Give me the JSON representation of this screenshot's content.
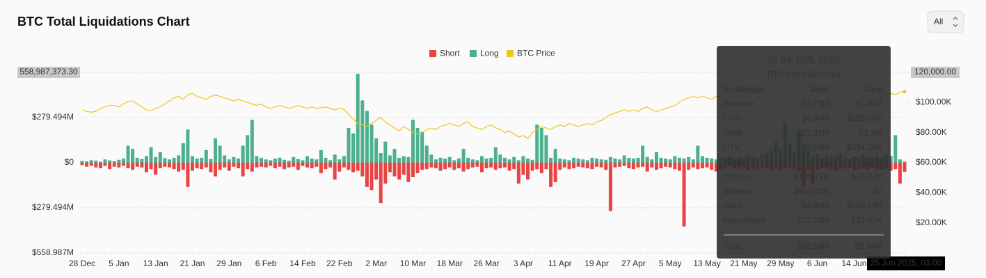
{
  "chart_data": {
    "type": "bar",
    "title": "BTC Total Liquidations Chart",
    "range_selector": "All",
    "categories": [
      "28 Dec",
      null,
      null,
      null,
      null,
      null,
      null,
      null,
      "5 Jan",
      null,
      null,
      null,
      null,
      null,
      null,
      null,
      "13 Jan",
      null,
      null,
      null,
      null,
      null,
      null,
      null,
      "21 Jan",
      null,
      null,
      null,
      null,
      null,
      null,
      null,
      "29 Jan",
      null,
      null,
      null,
      null,
      null,
      null,
      null,
      "6 Feb",
      null,
      null,
      null,
      null,
      null,
      null,
      null,
      "14 Feb",
      null,
      null,
      null,
      null,
      null,
      null,
      null,
      "22 Feb",
      null,
      null,
      null,
      null,
      null,
      null,
      null,
      "2 Mar",
      null,
      null,
      null,
      null,
      null,
      null,
      null,
      "10 Mar",
      null,
      null,
      null,
      null,
      null,
      null,
      null,
      "18 Mar",
      null,
      null,
      null,
      null,
      null,
      null,
      null,
      "26 Mar",
      null,
      null,
      null,
      null,
      null,
      null,
      null,
      "3 Apr",
      null,
      null,
      null,
      null,
      null,
      null,
      null,
      "11 Apr",
      null,
      null,
      null,
      null,
      null,
      null,
      null,
      "19 Apr",
      null,
      null,
      null,
      null,
      null,
      null,
      null,
      "27 Apr",
      null,
      null,
      null,
      null,
      null,
      null,
      null,
      "5 May",
      null,
      null,
      null,
      null,
      null,
      null,
      null,
      "13 May",
      null,
      null,
      null,
      null,
      null,
      null,
      null,
      "21 May",
      null,
      null,
      null,
      null,
      null,
      null,
      null,
      "29 May",
      null,
      null,
      null,
      null,
      null,
      null,
      null,
      "6 Jun",
      null,
      null,
      null,
      null,
      null,
      null,
      null,
      "14 Jun",
      null,
      null,
      null,
      null,
      null,
      null,
      null,
      null,
      null,
      null,
      "25 Jun 2025, 03:00"
    ],
    "series": [
      {
        "name": "Short",
        "color": "#ea4344",
        "values": [
          -15000000,
          -25000000,
          -20000000,
          -30000000,
          -35000000,
          -20000000,
          -40000000,
          -25000000,
          -30000000,
          -20000000,
          -35000000,
          -45000000,
          -25000000,
          -30000000,
          -60000000,
          -40000000,
          -75000000,
          -35000000,
          -25000000,
          -30000000,
          -40000000,
          -55000000,
          -45000000,
          -150000000,
          -50000000,
          -35000000,
          -40000000,
          -30000000,
          -60000000,
          -85000000,
          -45000000,
          -30000000,
          -50000000,
          -25000000,
          -35000000,
          -85000000,
          -40000000,
          -55000000,
          -30000000,
          -25000000,
          -30000000,
          -20000000,
          -35000000,
          -25000000,
          -40000000,
          -30000000,
          -25000000,
          -45000000,
          -20000000,
          -30000000,
          -35000000,
          -25000000,
          -65000000,
          -40000000,
          -30000000,
          -105000000,
          -55000000,
          -30000000,
          -45000000,
          -60000000,
          -50000000,
          -85000000,
          -150000000,
          -170000000,
          -105000000,
          -250000000,
          -130000000,
          -60000000,
          -85000000,
          -105000000,
          -75000000,
          -120000000,
          -90000000,
          -65000000,
          -45000000,
          -40000000,
          -30000000,
          -35000000,
          -50000000,
          -40000000,
          -30000000,
          -45000000,
          -35000000,
          -55000000,
          -40000000,
          -30000000,
          -25000000,
          -60000000,
          -35000000,
          -30000000,
          -45000000,
          -35000000,
          -30000000,
          -50000000,
          -40000000,
          -130000000,
          -75000000,
          -105000000,
          -50000000,
          -40000000,
          -65000000,
          -40000000,
          -150000000,
          -120000000,
          -45000000,
          -30000000,
          -40000000,
          -35000000,
          -25000000,
          -30000000,
          -35000000,
          -40000000,
          -25000000,
          -30000000,
          -45000000,
          -300000000,
          -30000000,
          -25000000,
          -20000000,
          -35000000,
          -40000000,
          -30000000,
          -25000000,
          -55000000,
          -30000000,
          -45000000,
          -35000000,
          -25000000,
          -30000000,
          -40000000,
          -50000000,
          -395000000,
          -45000000,
          -30000000,
          -40000000,
          -35000000,
          -30000000,
          -45000000,
          -55000000,
          -40000000,
          -30000000,
          -25000000,
          -35000000,
          -40000000,
          -30000000,
          -45000000,
          -35000000,
          -40000000,
          -30000000,
          -35000000,
          -40000000,
          -30000000,
          -45000000,
          -35000000,
          -30000000,
          -40000000,
          -50000000,
          -150000000,
          -45000000,
          -130000000,
          -40000000,
          -35000000,
          -30000000,
          -45000000,
          -50000000,
          -40000000,
          -35000000,
          -30000000,
          -45000000,
          -40000000,
          -35000000,
          -40000000,
          -30000000,
          -45000000,
          -40000000,
          -35000000,
          -50000000,
          -40000000,
          -130000000,
          -56590000
        ]
      },
      {
        "name": "Long",
        "color": "#4caf8e",
        "values": [
          10000000,
          8000000,
          15000000,
          12000000,
          6000000,
          20000000,
          14000000,
          9000000,
          18000000,
          25000000,
          105000000,
          85000000,
          30000000,
          22000000,
          40000000,
          95000000,
          35000000,
          65000000,
          28000000,
          20000000,
          30000000,
          45000000,
          120000000,
          205000000,
          40000000,
          25000000,
          30000000,
          78000000,
          22000000,
          150000000,
          105000000,
          45000000,
          20000000,
          35000000,
          25000000,
          105000000,
          170000000,
          265000000,
          40000000,
          30000000,
          20000000,
          15000000,
          25000000,
          30000000,
          18000000,
          12000000,
          35000000,
          22000000,
          15000000,
          40000000,
          25000000,
          20000000,
          78000000,
          30000000,
          15000000,
          50000000,
          20000000,
          40000000,
          215000000,
          180000000,
          550000000,
          385000000,
          320000000,
          235000000,
          150000000,
          60000000,
          130000000,
          45000000,
          85000000,
          30000000,
          40000000,
          35000000,
          265000000,
          215000000,
          190000000,
          105000000,
          50000000,
          20000000,
          30000000,
          25000000,
          35000000,
          15000000,
          25000000,
          85000000,
          30000000,
          20000000,
          15000000,
          40000000,
          25000000,
          30000000,
          95000000,
          50000000,
          30000000,
          20000000,
          35000000,
          15000000,
          40000000,
          25000000,
          18000000,
          235000000,
          215000000,
          170000000,
          30000000,
          85000000,
          25000000,
          20000000,
          15000000,
          30000000,
          25000000,
          20000000,
          15000000,
          30000000,
          25000000,
          20000000,
          18000000,
          35000000,
          25000000,
          20000000,
          45000000,
          30000000,
          25000000,
          30000000,
          105000000,
          35000000,
          20000000,
          65000000,
          30000000,
          25000000,
          20000000,
          40000000,
          30000000,
          25000000,
          35000000,
          20000000,
          105000000,
          40000000,
          30000000,
          25000000,
          20000000,
          35000000,
          30000000,
          40000000,
          25000000,
          35000000,
          30000000,
          45000000,
          40000000,
          30000000,
          50000000,
          60000000,
          75000000,
          130000000,
          90000000,
          255000000,
          120000000,
          60000000,
          190000000,
          80000000,
          70000000,
          40000000,
          55000000,
          30000000,
          45000000,
          35000000,
          40000000,
          60000000,
          30000000,
          25000000,
          40000000,
          30000000,
          45000000,
          35000000,
          30000000,
          40000000,
          25000000,
          50000000,
          40000000,
          170000000,
          20000000,
          6340000
        ]
      },
      {
        "name": "BTC Price",
        "color": "#f0c419",
        "axis": "y2",
        "values": [
          95000,
          94000,
          93500,
          94000,
          96000,
          97000,
          98000,
          98000,
          97000,
          99000,
          100500,
          101000,
          99000,
          97000,
          95000,
          94500,
          96000,
          97000,
          99000,
          101000,
          103000,
          104000,
          102000,
          105000,
          106000,
          104000,
          103000,
          102000,
          104000,
          105000,
          104000,
          103000,
          102000,
          101000,
          102000,
          101000,
          100000,
          99000,
          98000,
          99000,
          97000,
          96000,
          97000,
          98000,
          97000,
          96000,
          97000,
          98000,
          97000,
          96000,
          97000,
          96000,
          96500,
          97000,
          96000,
          95000,
          96000,
          95500,
          92000,
          89000,
          86000,
          85000,
          84000,
          86000,
          88000,
          90000,
          87000,
          85000,
          83000,
          81000,
          84000,
          82000,
          80000,
          79000,
          80000,
          82000,
          83000,
          82000,
          84000,
          85000,
          86000,
          85000,
          84000,
          86000,
          87000,
          84000,
          83000,
          82000,
          84000,
          85000,
          83000,
          82000,
          80000,
          81000,
          79000,
          77000,
          78000,
          76000,
          80000,
          82000,
          84000,
          83000,
          82000,
          84000,
          85000,
          84000,
          86000,
          85000,
          84000,
          85000,
          86000,
          85000,
          87000,
          88000,
          90000,
          92000,
          93000,
          94000,
          95000,
          94000,
          95000,
          94000,
          96000,
          97000,
          95000,
          94000,
          95000,
          96000,
          97000,
          98000,
          100000,
          102000,
          103000,
          104000,
          103000,
          104000,
          103000,
          102000,
          104000,
          103000,
          105000,
          106000,
          107000,
          108000,
          109000,
          110000,
          108000,
          107000,
          109000,
          110000,
          108000,
          106000,
          105000,
          104000,
          107000,
          106000,
          105000,
          106000,
          107000,
          108000,
          109000,
          108000,
          106000,
          105000,
          104000,
          106000,
          107000,
          108000,
          105000,
          104000,
          103000,
          102000,
          101000,
          102000,
          104000,
          105000,
          106000,
          105000,
          107000,
          107143
        ]
      }
    ],
    "ylim": [
      -558987373.3,
      558987373.3
    ],
    "yticks": [
      {
        "value": -558987373.3,
        "label": "$558.987M"
      },
      {
        "value": -279493686.65,
        "label": "$279.494M"
      },
      {
        "value": 0,
        "label": "$0"
      },
      {
        "value": 279493686.65,
        "label": "$279.494M"
      },
      {
        "value": 558987373.3,
        "label": "558,987,373.30"
      }
    ],
    "y2lim": [
      0,
      120000
    ],
    "y2ticks": [
      {
        "value": 20000,
        "label": "$20.00K"
      },
      {
        "value": 40000,
        "label": "$40.00K"
      },
      {
        "value": 60000,
        "label": "$60.00K"
      },
      {
        "value": 80000,
        "label": "$80.00K"
      },
      {
        "value": 100000,
        "label": "$100.00K"
      },
      {
        "value": 120000,
        "label": "120,000.00"
      }
    ],
    "grid": true,
    "legend": "top",
    "tooltip": {
      "price": "BTC Price:$107143",
      "headers": [
        "Exchanges",
        "Short",
        "Long"
      ],
      "rows": [
        [
          "Binance",
          "$9.79M",
          "$1.46M"
        ],
        [
          "OKX",
          "$4.84M",
          "$568.66K"
        ],
        [
          "Bybit",
          "$21.31M",
          "$3.2M"
        ],
        [
          "HTX",
          "$3.56M",
          "$334.25K"
        ],
        [
          "Bitmex",
          "$0",
          "$17K"
        ],
        [
          "CoinEx",
          "$190.77K",
          "$25.83K"
        ],
        [
          "Bitfinex",
          "$951.43K",
          "$0"
        ],
        [
          "Gate",
          "$4.68M",
          "$730.23K"
        ],
        [
          "Hyperliquid",
          "$11.28M",
          "$12.07K"
        ]
      ],
      "total": [
        "Total",
        "$56.59M",
        "$6.34M"
      ]
    }
  }
}
